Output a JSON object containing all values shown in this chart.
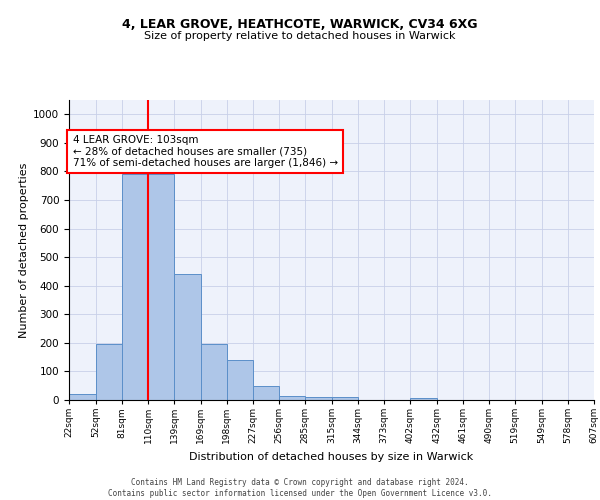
{
  "title1": "4, LEAR GROVE, HEATHCOTE, WARWICK, CV34 6XG",
  "title2": "Size of property relative to detached houses in Warwick",
  "xlabel": "Distribution of detached houses by size in Warwick",
  "ylabel": "Number of detached properties",
  "bar_values": [
    20,
    195,
    790,
    790,
    440,
    195,
    140,
    50,
    15,
    12,
    12,
    0,
    0,
    8,
    0,
    0,
    0,
    0,
    0,
    0
  ],
  "bin_edges": [
    22,
    52,
    81,
    110,
    139,
    169,
    198,
    227,
    256,
    285,
    315,
    344,
    373,
    402,
    432,
    461,
    490,
    519,
    549,
    578,
    607
  ],
  "tick_labels": [
    "22sqm",
    "52sqm",
    "81sqm",
    "110sqm",
    "139sqm",
    "169sqm",
    "198sqm",
    "227sqm",
    "256sqm",
    "285sqm",
    "315sqm",
    "344sqm",
    "373sqm",
    "402sqm",
    "432sqm",
    "461sqm",
    "490sqm",
    "519sqm",
    "549sqm",
    "578sqm",
    "607sqm"
  ],
  "bar_color": "#aec6e8",
  "bar_edge_color": "#5b8fc9",
  "marker_color": "red",
  "annotation_text": "4 LEAR GROVE: 103sqm\n← 28% of detached houses are smaller (735)\n71% of semi-detached houses are larger (1,846) →",
  "annotation_box_color": "white",
  "annotation_box_edge": "red",
  "ylim": [
    0,
    1050
  ],
  "yticks": [
    0,
    100,
    200,
    300,
    400,
    500,
    600,
    700,
    800,
    900,
    1000
  ],
  "footer1": "Contains HM Land Registry data © Crown copyright and database right 2024.",
  "footer2": "Contains public sector information licensed under the Open Government Licence v3.0.",
  "bg_color": "#eef2fb",
  "grid_color": "#c8d0e8"
}
